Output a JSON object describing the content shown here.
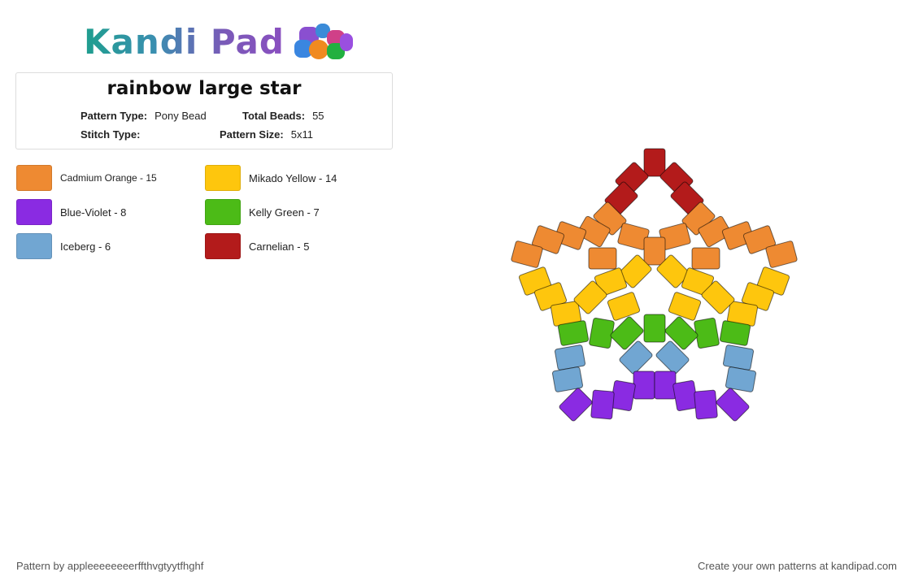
{
  "logo": {
    "text": "Kandi Pad",
    "icon": "bead-pile-icon"
  },
  "pattern": {
    "title": "rainbow large star",
    "type_label": "Pattern Type:",
    "type_value": "Pony Bead",
    "total_label": "Total Beads:",
    "total_value": "55",
    "stitch_label": "Stitch Type:",
    "stitch_value": "",
    "size_label": "Pattern Size:",
    "size_value": "5x11"
  },
  "legend": [
    {
      "label": "Cadmium Orange - 15",
      "color": "#ee8a32"
    },
    {
      "label": "Mikado Yellow - 14",
      "color": "#fec60d"
    },
    {
      "label": "Blue-Violet - 8",
      "color": "#8a2be2"
    },
    {
      "label": "Kelly Green - 7",
      "color": "#4cbb17"
    },
    {
      "label": "Iceberg - 6",
      "color": "#71a6d2"
    },
    {
      "label": "Carnelian - 5",
      "color": "#b31b1b"
    }
  ],
  "colors": {
    "orange": "#ee8a32",
    "yellow": "#fec60d",
    "violet": "#8a2be2",
    "green": "#4cbb17",
    "blue": "#71a6d2",
    "red": "#b31b1b"
  },
  "footer": {
    "left": "Pattern by appleeeeeeeerffthvgtyytfhghf",
    "right": "Create your own patterns at kandipad.com"
  }
}
